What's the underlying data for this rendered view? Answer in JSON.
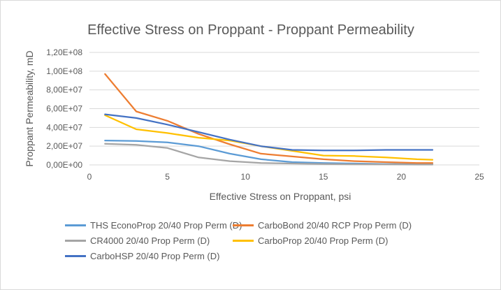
{
  "chart_data": {
    "type": "line",
    "title": "Effective Stress on Proppant - Proppant Permeability",
    "xlabel": "Effective Stress on Proppant, psi",
    "ylabel": "Proppant Permeability, mD",
    "xlim": [
      0,
      25
    ],
    "ylim": [
      0,
      120000000
    ],
    "x_ticks": [
      0,
      5,
      10,
      15,
      20,
      25
    ],
    "x_tick_labels": [
      "0",
      "5",
      "10",
      "15",
      "20",
      "25"
    ],
    "y_ticks": [
      0,
      20000000,
      40000000,
      60000000,
      80000000,
      100000000,
      120000000
    ],
    "y_tick_labels": [
      "0,00E+00",
      "2,00E+07",
      "4,00E+07",
      "6,00E+07",
      "8,00E+07",
      "1,00E+08",
      "1,20E+08"
    ],
    "grid": "horizontal",
    "legend_position": "bottom",
    "series": [
      {
        "name": "THS EconoProp 20/40 Prop Perm (D)",
        "color": "#5b9bd5",
        "x": [
          1,
          3,
          5,
          7,
          9,
          11,
          13,
          15,
          17,
          19,
          21,
          22
        ],
        "y": [
          26000000,
          25500000,
          24000000,
          20000000,
          12000000,
          6000000,
          3000000,
          2000000,
          1500000,
          1000000,
          800000,
          700000
        ]
      },
      {
        "name": "CarboBond 20/40 RCP Prop Perm (D)",
        "color": "#ed7d31",
        "x": [
          1,
          3,
          5,
          7,
          9,
          11,
          13,
          15,
          17,
          19,
          21,
          22
        ],
        "y": [
          97000000,
          57000000,
          47000000,
          33000000,
          22000000,
          12000000,
          9000000,
          6000000,
          4000000,
          3000000,
          2000000,
          2000000
        ]
      },
      {
        "name": "CR4000 20/40 Prop Perm (D)",
        "color": "#a5a5a5",
        "x": [
          1,
          3,
          5,
          7,
          9,
          11,
          13,
          15,
          17,
          19,
          21,
          22
        ],
        "y": [
          22500000,
          21500000,
          18000000,
          8000000,
          4000000,
          2000000,
          1500000,
          1000000,
          700000,
          500000,
          400000,
          400000
        ]
      },
      {
        "name": "CarboProp 20/40 Prop Perm (D)",
        "color": "#ffc000",
        "x": [
          1,
          3,
          5,
          7,
          9,
          11,
          13,
          15,
          17,
          19,
          21,
          22
        ],
        "y": [
          53000000,
          38000000,
          34000000,
          29000000,
          26000000,
          20000000,
          15000000,
          10000000,
          9500000,
          8000000,
          6000000,
          5500000
        ]
      },
      {
        "name": "CarboHSP 20/40 Prop Perm (D)",
        "color": "#4472c4",
        "x": [
          1,
          3,
          5,
          7,
          9,
          11,
          13,
          15,
          17,
          19,
          21,
          22
        ],
        "y": [
          54000000,
          50000000,
          43000000,
          35000000,
          27000000,
          20000000,
          16000000,
          15500000,
          15500000,
          16000000,
          16000000,
          16000000
        ]
      }
    ]
  }
}
